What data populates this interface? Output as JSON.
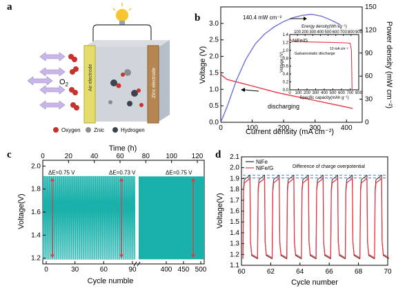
{
  "panels": {
    "a": {
      "letter": "a",
      "o2_label": "O",
      "o2_sub": "2",
      "air_electrode_label": "Air electrode",
      "zinc_electrode_label": "Zinc electrode",
      "legend": [
        {
          "label": "Oxygen",
          "color": "#c8312c"
        },
        {
          "label": "Znic",
          "color": "#8a8c90"
        },
        {
          "label": "Hydrogen",
          "color": "#3b4350"
        }
      ],
      "icons": [
        "lightbulb-icon",
        "arrow-icon"
      ]
    },
    "b": {
      "letter": "b"
    },
    "c": {
      "letter": "c"
    },
    "d": {
      "letter": "d"
    }
  },
  "chart_data": [
    {
      "id": "b",
      "type": "line",
      "xlabel": "Current density (mA cm⁻²)",
      "ylabel": "Voltage (V)",
      "y2label": "Power density (mW cm⁻²)",
      "xlim": [
        0,
        450
      ],
      "xticks": [
        0,
        100,
        200,
        300,
        400
      ],
      "ylim": [
        0,
        3.5
      ],
      "yticks": [
        0.0,
        0.5,
        1.0,
        1.5,
        2.0,
        2.5,
        3.0
      ],
      "y2lim": [
        0,
        150
      ],
      "y2ticks": [
        0,
        30,
        60,
        90,
        120,
        150
      ],
      "annotation_peak": "140.4 mW cm⁻²",
      "annotation_discharging": "discharging",
      "series": [
        {
          "axis": "left",
          "color": "#e7343f",
          "x": [
            0,
            20,
            60,
            100,
            140,
            180,
            220,
            260,
            300,
            340,
            380,
            420
          ],
          "y": [
            1.45,
            1.3,
            1.2,
            1.1,
            1.0,
            0.9,
            0.82,
            0.74,
            0.66,
            0.58,
            0.5,
            0.42
          ]
        },
        {
          "axis": "right",
          "color": "#6f6fd8",
          "x": [
            0,
            20,
            50,
            80,
            110,
            140,
            170,
            200,
            230,
            260,
            290,
            320,
            350,
            380
          ],
          "y": [
            0,
            20,
            55,
            82,
            102,
            115,
            124,
            131,
            136,
            139,
            140.4,
            138,
            133,
            127
          ]
        }
      ],
      "inset": {
        "label": "NiFe/G",
        "text1": "10 mA cm⁻²",
        "text2": "Galvanostatic discharge",
        "xlabel": "Specific capacity(mAh g⁻¹)",
        "x2label": "Energy density(Wh kg⁻¹)",
        "ylabel": "Voltage (V)",
        "xlim": [
          0,
          800
        ],
        "xticks": [
          0,
          100,
          200,
          300,
          400,
          500,
          600,
          700,
          800
        ],
        "x2ticks": [
          100,
          200,
          300,
          400,
          500,
          600,
          700,
          800,
          900
        ],
        "ylim": [
          0,
          1.4
        ],
        "yticks": [
          0.0,
          0.2,
          0.4,
          0.6,
          0.8,
          1.0,
          1.2,
          1.4
        ],
        "series": {
          "color": "#e7343f",
          "x": [
            0,
            20,
            100,
            300,
            500,
            650,
            700,
            715,
            722
          ],
          "y": [
            1.3,
            1.23,
            1.22,
            1.21,
            1.2,
            1.19,
            1.18,
            1.0,
            0.0
          ]
        }
      }
    },
    {
      "id": "c",
      "type": "line",
      "xlabel": "Cycle numble",
      "x2label": "Time (h)",
      "ylabel": "Voltage(V)",
      "ylim": [
        1.15,
        2.05
      ],
      "yticks": [
        1.2,
        1.4,
        1.6,
        1.8,
        2.0
      ],
      "xticks_seg1": [
        0,
        30,
        60,
        90
      ],
      "xticks_seg2": [
        400,
        450,
        500
      ],
      "time_ticks": [
        0,
        20,
        40,
        60,
        80,
        100,
        120
      ],
      "color": "#1ab1ab",
      "band_high": 1.91,
      "band_low": 1.19,
      "annotations": [
        "ΔE=0.75 V",
        "ΔE=0.73 V",
        "ΔE=0.75 V"
      ]
    },
    {
      "id": "d",
      "type": "line",
      "xlabel": "Cycle number",
      "ylabel": "Voltage(V)",
      "xlim": [
        60,
        70
      ],
      "xticks": [
        60,
        62,
        64,
        66,
        68,
        70
      ],
      "ylim": [
        1.1,
        2.1
      ],
      "yticks": [
        1.1,
        1.2,
        1.3,
        1.4,
        1.5,
        1.6,
        1.7,
        1.8,
        1.9,
        2.0,
        2.1
      ],
      "annotation": "Difference of charge overpotential",
      "series": [
        {
          "name": "NiFe",
          "color": "#222222",
          "high": 1.93,
          "low": 1.16
        },
        {
          "name": "NiFe/G",
          "color": "#e7343f",
          "high": 1.9,
          "low": 1.17
        }
      ],
      "reference_levels": [
        1.93,
        1.905
      ],
      "reference_color": "#3c6fd0"
    }
  ]
}
